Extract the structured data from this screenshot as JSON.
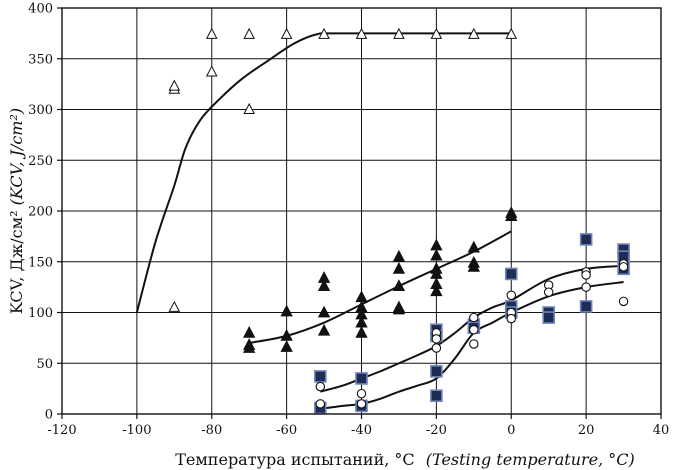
{
  "chart_data": {
    "type": "scatter",
    "title": "",
    "xlabel": "Температура испытаний, °C",
    "xlabel_en": "(Testing temperature, °C)",
    "ylabel": "KCV, Дж/см² ",
    "ylabel_en": "(KCV, J/cm²)",
    "xlim": [
      -120,
      40
    ],
    "ylim": [
      0,
      400
    ],
    "xticks": [
      -120,
      -100,
      -80,
      -60,
      -40,
      -20,
      0,
      20,
      40
    ],
    "yticks": [
      0,
      50,
      100,
      150,
      200,
      250,
      300,
      350,
      400
    ],
    "grid": true,
    "colors": {
      "axis": "#111111",
      "grid": "#111111",
      "square_fill": "#1f2d55",
      "square_edge": "#6f86b8",
      "filled": "#111111"
    },
    "series": [
      {
        "marker": "open-triangle",
        "points": [
          [
            -90,
            105
          ],
          [
            -90,
            320
          ],
          [
            -90,
            323
          ],
          [
            -80,
            337
          ],
          [
            -80,
            374
          ],
          [
            -70,
            300
          ],
          [
            -70,
            374
          ],
          [
            -60,
            374
          ],
          [
            -50,
            374
          ],
          [
            -40,
            374
          ],
          [
            -30,
            374
          ],
          [
            -20,
            374
          ],
          [
            -10,
            374
          ],
          [
            0,
            374
          ]
        ],
        "curve": [
          [
            -100,
            100
          ],
          [
            -95,
            170
          ],
          [
            -90,
            225
          ],
          [
            -87,
            262
          ],
          [
            -83,
            290
          ],
          [
            -78,
            310
          ],
          [
            -72,
            330
          ],
          [
            -65,
            348
          ],
          [
            -58,
            365
          ],
          [
            -52,
            374
          ],
          [
            -45,
            375
          ],
          [
            0,
            375
          ]
        ]
      },
      {
        "marker": "filled-triangle",
        "points": [
          [
            -70,
            80
          ],
          [
            -70,
            68
          ],
          [
            -70,
            65
          ],
          [
            -60,
            101
          ],
          [
            -60,
            77
          ],
          [
            -60,
            66
          ],
          [
            -50,
            134
          ],
          [
            -50,
            126
          ],
          [
            -50,
            100
          ],
          [
            -50,
            82
          ],
          [
            -40,
            115
          ],
          [
            -40,
            105
          ],
          [
            -40,
            98
          ],
          [
            -40,
            90
          ],
          [
            -40,
            80
          ],
          [
            -30,
            155
          ],
          [
            -30,
            143
          ],
          [
            -30,
            126
          ],
          [
            -30,
            105
          ],
          [
            -30,
            103
          ],
          [
            -20,
            166
          ],
          [
            -20,
            156
          ],
          [
            -20,
            143
          ],
          [
            -20,
            138
          ],
          [
            -20,
            128
          ],
          [
            -20,
            121
          ],
          [
            -10,
            164
          ],
          [
            -10,
            149
          ],
          [
            -10,
            145
          ],
          [
            0,
            198
          ],
          [
            0,
            195
          ]
        ],
        "curve": [
          [
            -70,
            70
          ],
          [
            -60,
            77
          ],
          [
            -50,
            90
          ],
          [
            -40,
            108
          ],
          [
            -30,
            126
          ],
          [
            -20,
            143
          ],
          [
            -10,
            160
          ],
          [
            0,
            180
          ]
        ]
      },
      {
        "marker": "filled-square",
        "points": [
          [
            -51,
            37
          ],
          [
            -51,
            6
          ],
          [
            -40,
            35
          ],
          [
            -40,
            8
          ],
          [
            -20,
            83
          ],
          [
            -20,
            77
          ],
          [
            -20,
            42
          ],
          [
            -20,
            18
          ],
          [
            -10,
            88
          ],
          [
            -10,
            85
          ],
          [
            0,
            138
          ],
          [
            0,
            106
          ],
          [
            0,
            100
          ],
          [
            10,
            100
          ],
          [
            10,
            95
          ],
          [
            20,
            172
          ],
          [
            20,
            106
          ],
          [
            30,
            162
          ],
          [
            30,
            155
          ],
          [
            30,
            143
          ]
        ]
      },
      {
        "marker": "open-circle",
        "points": [
          [
            -51,
            27
          ],
          [
            -51,
            10
          ],
          [
            -40,
            20
          ],
          [
            -40,
            10
          ],
          [
            -20,
            80
          ],
          [
            -20,
            74
          ],
          [
            -20,
            65
          ],
          [
            -10,
            95
          ],
          [
            -10,
            83
          ],
          [
            -10,
            69
          ],
          [
            0,
            117
          ],
          [
            0,
            100
          ],
          [
            0,
            94
          ],
          [
            10,
            127
          ],
          [
            10,
            120
          ],
          [
            20,
            140
          ],
          [
            20,
            137
          ],
          [
            20,
            125
          ],
          [
            30,
            148
          ],
          [
            30,
            145
          ],
          [
            30,
            111
          ]
        ]
      },
      {
        "marker": "line",
        "curve": [
          [
            -51,
            22
          ],
          [
            -45,
            28
          ],
          [
            -40,
            35
          ],
          [
            -35,
            42
          ],
          [
            -30,
            50
          ],
          [
            -25,
            58
          ],
          [
            -20,
            67
          ],
          [
            -15,
            80
          ],
          [
            -10,
            95
          ],
          [
            -5,
            105
          ],
          [
            0,
            112
          ],
          [
            10,
            133
          ],
          [
            20,
            143
          ],
          [
            30,
            146
          ]
        ]
      },
      {
        "marker": "line",
        "curve": [
          [
            -51,
            5
          ],
          [
            -45,
            8
          ],
          [
            -40,
            10
          ],
          [
            -35,
            15
          ],
          [
            -30,
            22
          ],
          [
            -25,
            28
          ],
          [
            -20,
            35
          ],
          [
            -15,
            55
          ],
          [
            -10,
            80
          ],
          [
            -5,
            90
          ],
          [
            0,
            100
          ],
          [
            10,
            116
          ],
          [
            20,
            125
          ],
          [
            30,
            130
          ]
        ]
      }
    ]
  }
}
